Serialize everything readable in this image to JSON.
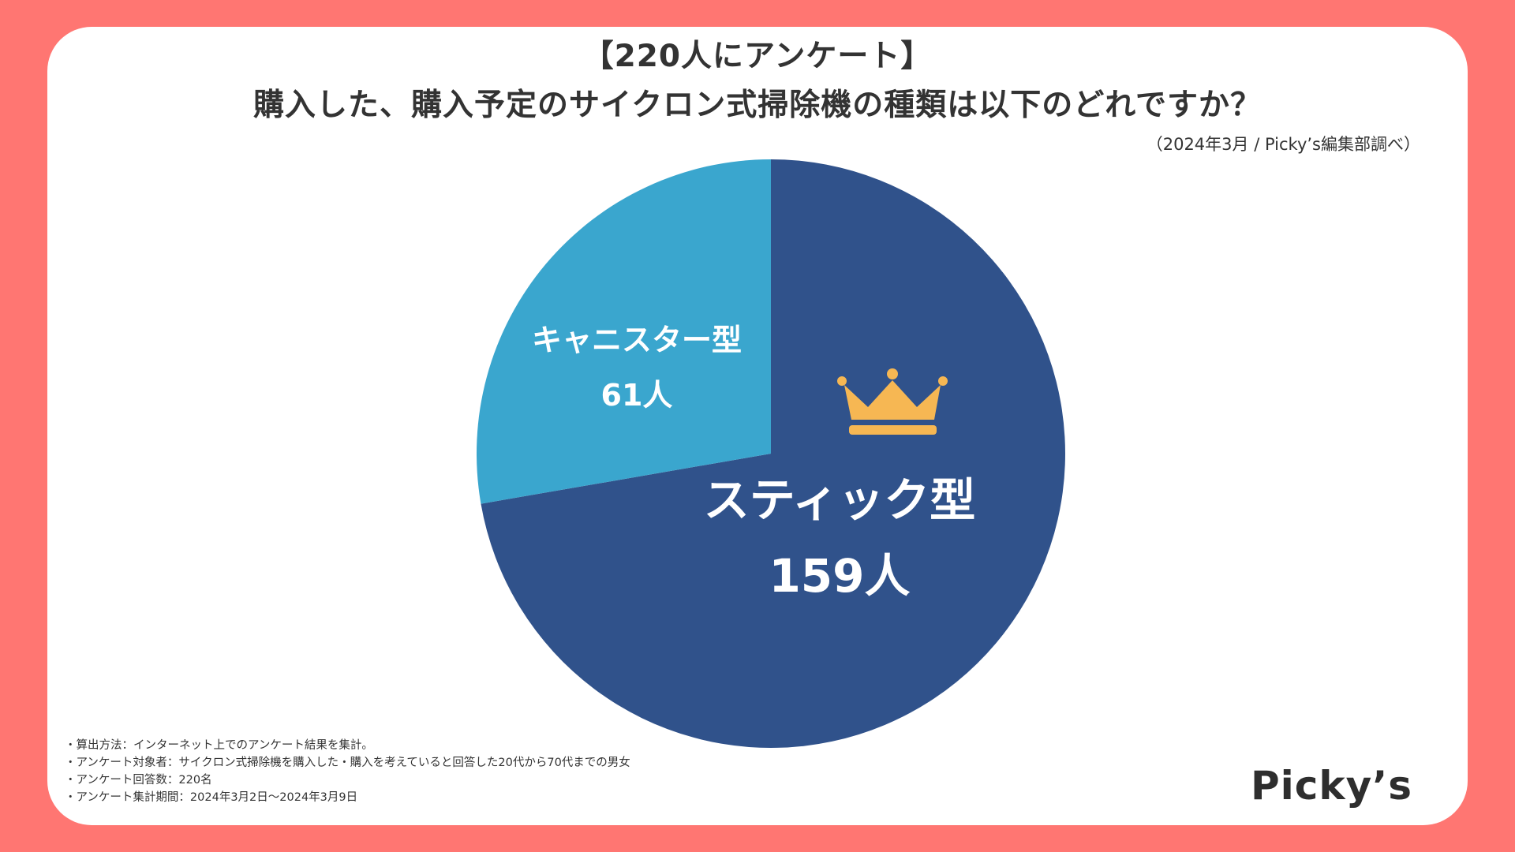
{
  "header": {
    "title_line1": "【220人にアンケート】",
    "title_line2": "購入した、購入予定のサイクロン式掃除機の種類は以下のどれですか？",
    "source": "（2024年3月 / Picky’s編集部調べ）"
  },
  "chart_data": {
    "type": "pie",
    "title": "購入した、購入予定のサイクロン式掃除機の種類は以下のどれですか？",
    "unit": "人",
    "total": 220,
    "start": "12 o'clock, clockwise",
    "slices": [
      {
        "label": "スティック型",
        "value": 159,
        "value_label": "159人",
        "color": "#30528B",
        "winner": true
      },
      {
        "label": "キャニスター型",
        "value": 61,
        "value_label": "61人",
        "color": "#3AA6CE",
        "winner": false
      }
    ]
  },
  "notes": [
    "・算出方法：インターネット上でのアンケート結果を集計。",
    "・アンケート対象者：サイクロン式掃除機を購入した・購入を考えていると回答した20代から70代までの男女",
    "・アンケート回答数：220名",
    "・アンケート集計期間：2024年3月2日〜2024年3月9日"
  ],
  "brand": {
    "logo_text": "Picky’s",
    "background_color": "#FF7672",
    "crown_color": "#F6B753"
  }
}
